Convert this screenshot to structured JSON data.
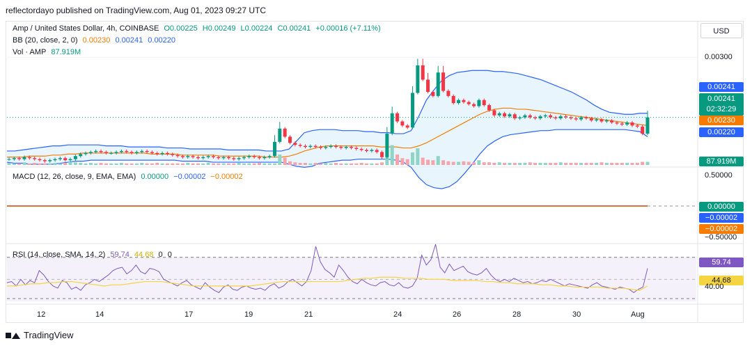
{
  "publisher_line": "reflectordayo published on TradingView.com, Aug 01, 2023 09:27 UTC",
  "footer_brand": "TradingView",
  "currency_button": "USD",
  "legend": {
    "symbol": "Amp / United States Dollar, 4h, COINBASE",
    "open": "O0.00225",
    "high": "H0.00249",
    "low": "L0.00224",
    "close": "C0.00241",
    "change": "+0.00016 (+7.11%)",
    "bb_label": "BB (20, close, 2, 0)",
    "bb_mid": "0.00230",
    "bb_upper": "0.00241",
    "bb_lower": "0.00220",
    "vol_label": "Vol · AMP",
    "vol_value": "87.919M",
    "macd_label": "MACD (12, 26, close, 9, EMA, EMA)",
    "macd_hist": "0.00000",
    "macd_line": "−0.00002",
    "macd_signal": "−0.00002",
    "rsi_label": "RSI (14, close, SMA, 14, 2)",
    "rsi_value": "59.74",
    "rsi_sma": "44.68",
    "rsi_z1": "0",
    "rsi_z2": "0"
  },
  "price_axis": {
    "ticks": [
      "0.00300"
    ],
    "price_tag": "0.00241",
    "countdown": "02:32:29",
    "bb_upper_tag": "0.00241",
    "bb_mid_tag": "0.00230",
    "bb_lower_tag": "0.00220",
    "vol_tag": "87.919M"
  },
  "macd_axis": {
    "ticks": [
      "0.50000",
      "−0.50000"
    ],
    "hist_tag": "0.00000",
    "macd_tag": "−0.00002",
    "signal_tag": "−0.00002"
  },
  "rsi_axis": {
    "ticks": [
      "40.00"
    ],
    "rsi_tag": "59.74",
    "sma_tag": "44.68"
  },
  "time_axis": [
    "12",
    "14",
    "17",
    "19",
    "21",
    "24",
    "26",
    "28",
    "30",
    "Aug"
  ],
  "colors": {
    "up": "#089981",
    "down": "#f23645",
    "bb": "#2962ff",
    "basis": "#f57c00",
    "rsi": "#7e57c2",
    "rsi_sma": "#f5d442",
    "bb_fill": "#e3f2fd",
    "rsi_fill": "#ede7f6"
  },
  "chart_data": {
    "type": "candlestick",
    "title": "Amp / United States Dollar, 4h, COINBASE",
    "interval": "4h",
    "exchange": "COINBASE",
    "ylim": [
      0.00195,
      0.00322
    ],
    "last": {
      "open": 0.00225,
      "high": 0.00249,
      "low": 0.00224,
      "close": 0.00241
    },
    "closes": [
      0.002,
      0.00201,
      0.002,
      0.00202,
      0.00201,
      0.002,
      0.00199,
      0.00198,
      0.00199,
      0.002,
      0.00201,
      0.00199,
      0.002,
      0.00203,
      0.00205,
      0.00206,
      0.00207,
      0.00208,
      0.00207,
      0.00206,
      0.00206,
      0.00207,
      0.00208,
      0.00207,
      0.00206,
      0.00207,
      0.00208,
      0.00207,
      0.00206,
      0.00205,
      0.00206,
      0.00205,
      0.00204,
      0.00203,
      0.00202,
      0.00203,
      0.00202,
      0.00201,
      0.00202,
      0.00203,
      0.00202,
      0.00201,
      0.00202,
      0.00201,
      0.002,
      0.00201,
      0.00202,
      0.00203,
      0.00202,
      0.00201,
      0.00202,
      0.00203,
      0.00217,
      0.0023,
      0.00222,
      0.00216,
      0.00214,
      0.00213,
      0.00212,
      0.00213,
      0.00212,
      0.00211,
      0.00212,
      0.00213,
      0.00212,
      0.00211,
      0.00212,
      0.00211,
      0.0021,
      0.00209,
      0.00208,
      0.00209,
      0.00207,
      0.00202,
      0.00225,
      0.00245,
      0.00237,
      0.00233,
      0.00231,
      0.00265,
      0.00292,
      0.00278,
      0.00266,
      0.00262,
      0.00285,
      0.00267,
      0.00262,
      0.00255,
      0.00258,
      0.00256,
      0.00254,
      0.00252,
      0.00258,
      0.00253,
      0.00248,
      0.00243,
      0.00245,
      0.00242,
      0.00244,
      0.0024,
      0.00241,
      0.00243,
      0.00241,
      0.0024,
      0.00242,
      0.00243,
      0.00241,
      0.0024,
      0.00242,
      0.00241,
      0.0024,
      0.00239,
      0.00241,
      0.0024,
      0.00238,
      0.00239,
      0.00237,
      0.00238,
      0.00236,
      0.00235,
      0.00234,
      0.00236,
      0.00233,
      0.00232,
      0.00225,
      0.00241
    ],
    "bb_upper": [
      0.00208,
      0.00208,
      0.00209,
      0.0021,
      0.00211,
      0.00212,
      0.00213,
      0.00213,
      0.00214,
      0.00214,
      0.00214,
      0.00214,
      0.00214,
      0.00213,
      0.00213,
      0.00213,
      0.00212,
      0.00212,
      0.00212,
      0.00212,
      0.00212,
      0.00211,
      0.00211,
      0.00211,
      0.0021,
      0.0021,
      0.0021,
      0.0021,
      0.0021,
      0.00209,
      0.00209,
      0.00209,
      0.00209,
      0.00209,
      0.00208,
      0.00208,
      0.00208,
      0.0021,
      0.00218,
      0.00226,
      0.00228,
      0.00229,
      0.00229,
      0.00229,
      0.00228,
      0.00228,
      0.00228,
      0.00227,
      0.00227,
      0.00226,
      0.00226,
      0.00225,
      0.00225,
      0.00228,
      0.00242,
      0.00258,
      0.00268,
      0.00277,
      0.00282,
      0.00285,
      0.00286,
      0.00287,
      0.00287,
      0.00287,
      0.00286,
      0.00286,
      0.00285,
      0.00284,
      0.00282,
      0.0028,
      0.00278,
      0.00275,
      0.00272,
      0.00269,
      0.00266,
      0.00262,
      0.00258,
      0.00253,
      0.00249,
      0.00246,
      0.00245,
      0.00244,
      0.00244,
      0.00245,
      0.00245
    ],
    "bb_lower": [
      0.00197,
      0.00196,
      0.00196,
      0.00195,
      0.00195,
      0.00195,
      0.00195,
      0.00196,
      0.00197,
      0.00198,
      0.00198,
      0.00199,
      0.00199,
      0.00199,
      0.00199,
      0.00199,
      0.00199,
      0.00199,
      0.00199,
      0.00199,
      0.00199,
      0.00199,
      0.00199,
      0.00198,
      0.00198,
      0.00198,
      0.00198,
      0.00197,
      0.00197,
      0.00197,
      0.00197,
      0.00197,
      0.00197,
      0.00197,
      0.00197,
      0.00197,
      0.00197,
      0.00195,
      0.00193,
      0.00192,
      0.00193,
      0.00196,
      0.00197,
      0.00198,
      0.00199,
      0.00199,
      0.002,
      0.002,
      0.002,
      0.002,
      0.002,
      0.00199,
      0.00197,
      0.00192,
      0.00182,
      0.00175,
      0.00172,
      0.00171,
      0.00173,
      0.00178,
      0.00186,
      0.00195,
      0.00205,
      0.00213,
      0.00218,
      0.00222,
      0.00224,
      0.00225,
      0.00226,
      0.00227,
      0.00228,
      0.00228,
      0.00229,
      0.00229,
      0.00229,
      0.00229,
      0.00229,
      0.00229,
      0.00229,
      0.00229,
      0.00229,
      0.00229,
      0.00228,
      0.00227,
      0.00222
    ],
    "bb_basis": [
      0.00202,
      0.00202,
      0.00202,
      0.00203,
      0.00203,
      0.00203,
      0.00204,
      0.00204,
      0.00205,
      0.00205,
      0.00206,
      0.00206,
      0.00206,
      0.00206,
      0.00206,
      0.00206,
      0.00206,
      0.00206,
      0.00206,
      0.00205,
      0.00205,
      0.00205,
      0.00205,
      0.00204,
      0.00204,
      0.00204,
      0.00204,
      0.00204,
      0.00203,
      0.00203,
      0.00203,
      0.00203,
      0.00203,
      0.00203,
      0.00202,
      0.00202,
      0.00202,
      0.00203,
      0.00205,
      0.00208,
      0.0021,
      0.00212,
      0.00213,
      0.00213,
      0.00213,
      0.00213,
      0.00213,
      0.00213,
      0.00213,
      0.00212,
      0.00212,
      0.00212,
      0.00211,
      0.00211,
      0.00213,
      0.00216,
      0.0022,
      0.00224,
      0.00228,
      0.00232,
      0.00236,
      0.0024,
      0.00244,
      0.00247,
      0.00249,
      0.0025,
      0.0025,
      0.00249,
      0.00249,
      0.00248,
      0.00247,
      0.00246,
      0.00245,
      0.00244,
      0.00243,
      0.00242,
      0.00241,
      0.0024,
      0.00239,
      0.00238,
      0.00237,
      0.00236,
      0.00235,
      0.00234,
      0.00233
    ],
    "volume": [
      4,
      3,
      3,
      5,
      3,
      4,
      3,
      3,
      3,
      4,
      3,
      4,
      6,
      5,
      4,
      3,
      4,
      3,
      4,
      3,
      3,
      3,
      4,
      3,
      3,
      3,
      4,
      3,
      3,
      4,
      3,
      3,
      3,
      3,
      3,
      4,
      3,
      3,
      3,
      4,
      3,
      3,
      3,
      3,
      3,
      4,
      3,
      3,
      3,
      4,
      3,
      3,
      3,
      20,
      14,
      7,
      5,
      4,
      4,
      3,
      4,
      3,
      4,
      3,
      4,
      3,
      3,
      3,
      3,
      4,
      3,
      3,
      3,
      5,
      28,
      38,
      20,
      13,
      11,
      24,
      32,
      14,
      10,
      9,
      17,
      9,
      7,
      6,
      6,
      7,
      6,
      5,
      9,
      5,
      5,
      4,
      5,
      4,
      4,
      4,
      4,
      4,
      5,
      4,
      4,
      4,
      4,
      4,
      5,
      4,
      4,
      4,
      4,
      4,
      4,
      4,
      5,
      4,
      4,
      4,
      4,
      4,
      4,
      4,
      6,
      6
    ],
    "volume_last": "87.919M",
    "macd": {
      "ylim": [
        -0.5,
        0.5
      ],
      "hist": 0.0,
      "macd": -2e-05,
      "signal": -2e-05
    },
    "rsi": {
      "ylim": [
        30,
        80
      ],
      "values": [
        47,
        48,
        44,
        50,
        45,
        49,
        47,
        58,
        54,
        48,
        44,
        42,
        49,
        47,
        41,
        43,
        40,
        45,
        47,
        50,
        48,
        51,
        54,
        58,
        60,
        61,
        55,
        58,
        63,
        57,
        55,
        60,
        59,
        57,
        50,
        48,
        46,
        44,
        47,
        49,
        45,
        43,
        41,
        47,
        43,
        40,
        38,
        43,
        45,
        41,
        40,
        43,
        44,
        42,
        41,
        42,
        40,
        44,
        46,
        42,
        44,
        48,
        50,
        47,
        44,
        48,
        58,
        80,
        66,
        59,
        56,
        52,
        63,
        58,
        52,
        48,
        46,
        50,
        47,
        45,
        44,
        47,
        48,
        45,
        44,
        47,
        43,
        42,
        44,
        51,
        72,
        63,
        68,
        82,
        61,
        56,
        64,
        58,
        60,
        62,
        57,
        55,
        54,
        56,
        60,
        54,
        50,
        48,
        50,
        48,
        51,
        49,
        47,
        48,
        46,
        47,
        49,
        48,
        50,
        48,
        46,
        44,
        46,
        45,
        44,
        43,
        42,
        45,
        47,
        44,
        43,
        42,
        41,
        43,
        42,
        41,
        38,
        41,
        43,
        60
      ],
      "sma": [
        44,
        44,
        45,
        46,
        46,
        47,
        47,
        48,
        48,
        47,
        46,
        45,
        44,
        45,
        45,
        46,
        47,
        48,
        48,
        48,
        47,
        46,
        45,
        44,
        44,
        44,
        44,
        44,
        44,
        44,
        44,
        45,
        46,
        47,
        48,
        48,
        48,
        48,
        48,
        48,
        48,
        48,
        49,
        50,
        51,
        51,
        52,
        52,
        52,
        51,
        51,
        51,
        50,
        50,
        50,
        49,
        49,
        49,
        49,
        48,
        48,
        47,
        47,
        46,
        46,
        46,
        45,
        45,
        44,
        44,
        43,
        43,
        43,
        43,
        42,
        42,
        42,
        41,
        40,
        44
      ]
    }
  }
}
